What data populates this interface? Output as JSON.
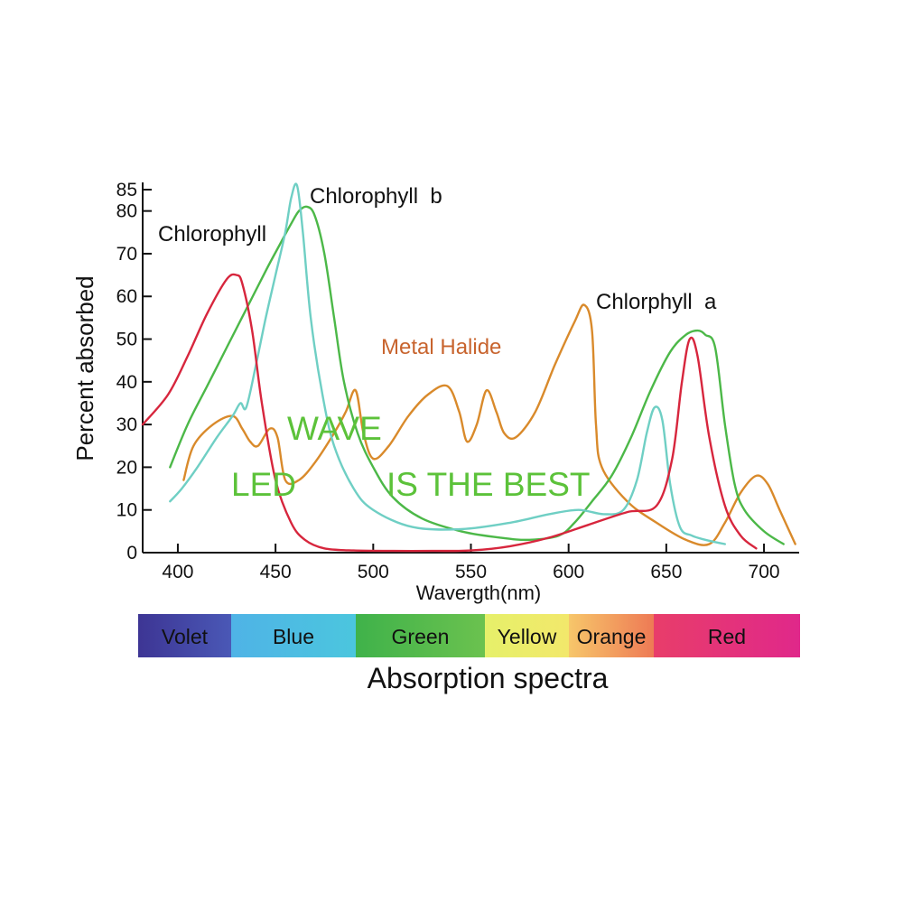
{
  "chart_data": {
    "type": "line",
    "title": "Absorption spectra",
    "xlabel": "Waverɡth(nm)",
    "ylabel": "Percent absorbed",
    "xlim": [
      382,
      718
    ],
    "ylim": [
      0,
      85
    ],
    "x_ticks": [
      "400",
      "450",
      "500",
      "550",
      "600",
      "650",
      "700"
    ],
    "x_tick_values": [
      400,
      450,
      500,
      550,
      600,
      650,
      700
    ],
    "y_ticks": [
      "0",
      "10",
      "20",
      "30",
      "40",
      "50",
      "60",
      "70",
      "80",
      "85"
    ],
    "y_tick_values": [
      0,
      10,
      20,
      30,
      40,
      50,
      60,
      70,
      80,
      85
    ],
    "grid": false,
    "series": [
      {
        "name": "Chlorophyll",
        "color": "#d7263d",
        "x": [
          382,
          395,
          405,
          415,
          425,
          430,
          433,
          438,
          443,
          450,
          458,
          465,
          475,
          490,
          510,
          530,
          550,
          570,
          590,
          610,
          630,
          645,
          653,
          658,
          662,
          666,
          672,
          680,
          688,
          696
        ],
        "y": [
          30,
          37,
          46,
          56,
          64,
          65,
          63,
          52,
          35,
          17,
          7,
          3,
          1,
          0.5,
          0.4,
          0.4,
          0.5,
          1.5,
          3.5,
          6.5,
          9.5,
          11,
          22,
          40,
          50,
          46,
          27,
          11,
          4,
          1
        ]
      },
      {
        "name": "Chlorophyll  b",
        "color": "#4cb848",
        "x": [
          396,
          405,
          415,
          425,
          435,
          445,
          452,
          458,
          462,
          466,
          470,
          475,
          480,
          485,
          492,
          500,
          510,
          525,
          545,
          565,
          580,
          595,
          603,
          612,
          622,
          632,
          642,
          652,
          660,
          666,
          670,
          675,
          680,
          685,
          690,
          700,
          710
        ],
        "y": [
          20,
          30,
          39,
          48,
          57,
          66,
          72,
          77,
          80,
          81,
          79,
          70,
          55,
          40,
          28,
          20,
          13,
          8,
          5,
          3.5,
          3,
          4,
          7,
          12,
          18,
          27,
          38,
          47,
          51,
          52,
          51,
          48,
          30,
          16,
          10,
          5,
          2
        ]
      },
      {
        "name": "Chlorphyll  a",
        "color": "#6fcfc4",
        "x": [
          396,
          402,
          410,
          420,
          428,
          432,
          435,
          440,
          445,
          450,
          455,
          458,
          461,
          464,
          468,
          474,
          480,
          490,
          500,
          520,
          545,
          570,
          590,
          605,
          618,
          628,
          635,
          640,
          644,
          648,
          652,
          657,
          663,
          670,
          680
        ],
        "y": [
          12,
          15,
          20,
          27,
          32,
          35,
          34,
          44,
          55,
          65,
          75,
          83,
          86,
          75,
          55,
          37,
          25,
          15,
          10,
          6,
          5.5,
          7,
          9,
          10,
          9,
          10,
          17,
          28,
          34,
          31,
          16,
          6,
          4,
          3,
          2
        ]
      },
      {
        "name": "Metal Halide",
        "color": "#d98a2b",
        "x": [
          403,
          408,
          418,
          428,
          433,
          437,
          441,
          447,
          451,
          455,
          462,
          470,
          480,
          486,
          491,
          495,
          500,
          508,
          518,
          528,
          538,
          544,
          548,
          553,
          558,
          563,
          567,
          573,
          583,
          593,
          603,
          608,
          612,
          614,
          617,
          630,
          645,
          660,
          672,
          680,
          688,
          696,
          702,
          708,
          716
        ],
        "y": [
          17,
          25,
          30,
          32,
          29,
          26,
          25,
          29,
          27,
          17,
          17,
          21,
          28,
          33,
          38,
          28,
          22,
          25,
          32,
          37,
          39,
          33,
          26,
          30,
          38,
          33,
          28,
          27,
          33,
          44,
          54,
          58,
          52,
          30,
          20,
          12,
          7,
          3,
          2,
          7,
          14,
          18,
          16,
          10,
          2
        ]
      }
    ],
    "annotations": {
      "chlorophyll": "Chlorophyll",
      "chlorophyll_b": "Chlorophyll  b",
      "chlorophyll_a": "Chlorphyll  a",
      "metal_halide": "Metal Halide",
      "wave": "WAVE",
      "led": "LED",
      "is_the_best": "IS THE BEST"
    },
    "spectrum_bar": [
      {
        "label": "Volet",
        "colors": [
          "#3d3594",
          "#4a58b6"
        ]
      },
      {
        "label": "Blue",
        "colors": [
          "#4fb3e6",
          "#4bc6de"
        ]
      },
      {
        "label": "Green",
        "colors": [
          "#3fb24a",
          "#6bc24f"
        ]
      },
      {
        "label": "Yellow",
        "colors": [
          "#e6f06a",
          "#f2e86b"
        ]
      },
      {
        "label": "Orange",
        "colors": [
          "#f7c66a",
          "#ee7a55"
        ]
      },
      {
        "label": "Red",
        "colors": [
          "#e83d6a",
          "#e0288a"
        ]
      }
    ],
    "annotation_colors": {
      "black": "#111111",
      "metal_halide": "#c8642e",
      "green_text": "#5cc23a"
    }
  }
}
